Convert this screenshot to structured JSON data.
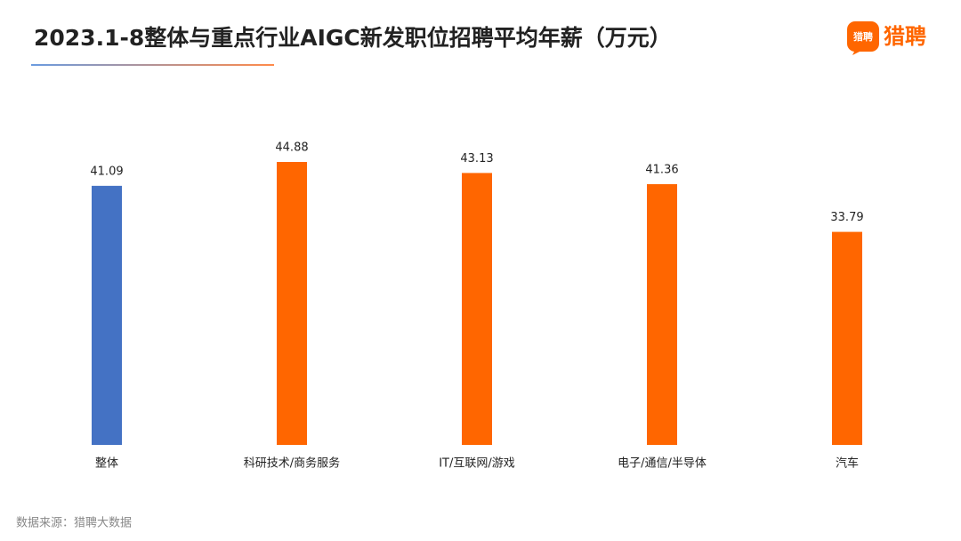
{
  "chart_data": {
    "type": "bar",
    "title": "2023.1-8整体与重点行业AIGC新发职位招聘平均年薪（万元）",
    "logo": "猎聘",
    "source": "数据来源：猎聘大数据",
    "categories": [
      "整体",
      "科研技术/商务服务",
      "IT/互联网/游戏",
      "电子/通信/半导体",
      "汽车"
    ],
    "values": [
      41.09,
      44.88,
      43.13,
      41.36,
      33.79
    ],
    "colors": [
      "#4472c4",
      "#ff6600",
      "#ff6600",
      "#ff6600",
      "#ff6600"
    ]
  }
}
